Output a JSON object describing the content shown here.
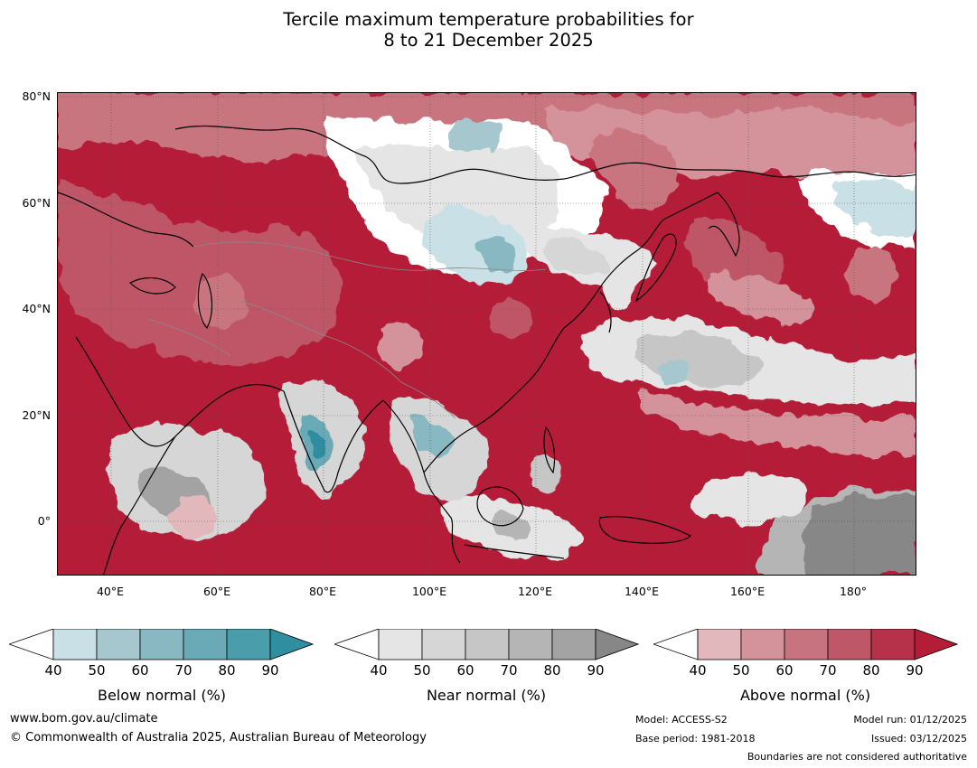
{
  "title": {
    "line1": "Tercile maximum temperature probabilities for",
    "line2": "8 to 21 December 2025"
  },
  "axes": {
    "lat_labels": [
      "80°N",
      "60°N",
      "40°N",
      "20°N",
      "0°"
    ],
    "lon_labels": [
      "40°E",
      "60°E",
      "80°E",
      "100°E",
      "120°E",
      "140°E",
      "160°E",
      "180°"
    ]
  },
  "colorbars": [
    {
      "label": "Below normal (%)",
      "ticks": [
        "40",
        "50",
        "60",
        "70",
        "80",
        "90"
      ],
      "colors": [
        "#c9e0e6",
        "#a6c7ce",
        "#88b8c1",
        "#6aaab6",
        "#4a9eac",
        "#2f8e9f"
      ]
    },
    {
      "label": "Near normal (%)",
      "ticks": [
        "40",
        "50",
        "60",
        "70",
        "80",
        "90"
      ],
      "colors": [
        "#e5e5e5",
        "#d6d6d6",
        "#c6c6c6",
        "#b5b5b5",
        "#a3a3a3",
        "#878787"
      ]
    },
    {
      "label": "Above normal (%)",
      "ticks": [
        "40",
        "50",
        "60",
        "70",
        "80",
        "90"
      ],
      "colors": [
        "#e2b8bd",
        "#d4939b",
        "#c87480",
        "#be5767",
        "#b6324a",
        "#b41c37"
      ]
    }
  ],
  "footer": {
    "website": "www.bom.gov.au/climate",
    "copyright": "© Commonwealth of Australia 2025, Australian Bureau of Meteorology",
    "model": "Model: ACCESS-S2",
    "base_period": "Base period: 1981-2018",
    "model_run": "Model run: 01/12/2025",
    "issued": "Issued: 03/12/2025",
    "disclaimer": "Boundaries are not considered authoritative"
  }
}
